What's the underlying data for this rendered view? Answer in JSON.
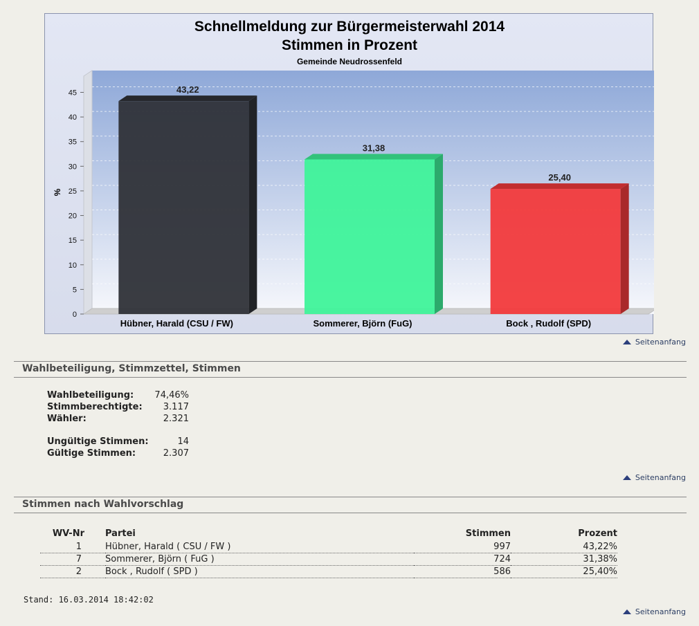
{
  "chart_data": {
    "type": "bar",
    "title": "Schnellmeldung zur Bürgermeisterwahl 2014",
    "subtitle": "Stimmen in Prozent",
    "sub_subtitle": "Gemeinde Neudrossenfeld",
    "ylabel": "%",
    "ylim": [
      0,
      45
    ],
    "yticks": [
      0,
      5,
      10,
      15,
      20,
      25,
      30,
      35,
      40,
      45
    ],
    "categories": [
      "Hübner, Harald (CSU / FW)",
      "Sommerer, Björn (FuG)",
      "Bock , Rudolf (SPD)"
    ],
    "values": [
      43.22,
      31.38,
      25.4
    ],
    "value_labels": [
      "43,22",
      "31,38",
      "25,40"
    ],
    "colors": [
      "#2f3238",
      "#3ff39a",
      "#f23a3c"
    ],
    "grid": true
  },
  "links": {
    "top": "Seitenanfang"
  },
  "section1": {
    "title": "Wahlbeteiligung, Stimmzettel, Stimmen",
    "stats": [
      {
        "label": "Wahlbeteiligung:",
        "value": "74,46%"
      },
      {
        "label": "Stimmberechtigte:",
        "value": "3.117"
      },
      {
        "label": "Wähler:",
        "value": "2.321"
      },
      {
        "label": "Ungültige Stimmen:",
        "value": "14"
      },
      {
        "label": "Gültige Stimmen:",
        "value": "2.307"
      }
    ]
  },
  "section2": {
    "title": "Stimmen nach Wahlvorschlag",
    "headers": {
      "nr": "WV-Nr",
      "party": "Partei",
      "votes": "Stimmen",
      "pct": "Prozent"
    },
    "rows": [
      {
        "nr": "1",
        "party": "Hübner, Harald ( CSU / FW )",
        "votes": "997",
        "pct": "43,22%"
      },
      {
        "nr": "7",
        "party": "Sommerer, Björn ( FuG )",
        "votes": "724",
        "pct": "31,38%"
      },
      {
        "nr": "2",
        "party": "Bock , Rudolf ( SPD )",
        "votes": "586",
        "pct": "25,40%"
      }
    ]
  },
  "stand": "Stand: 16.03.2014 18:42:02"
}
